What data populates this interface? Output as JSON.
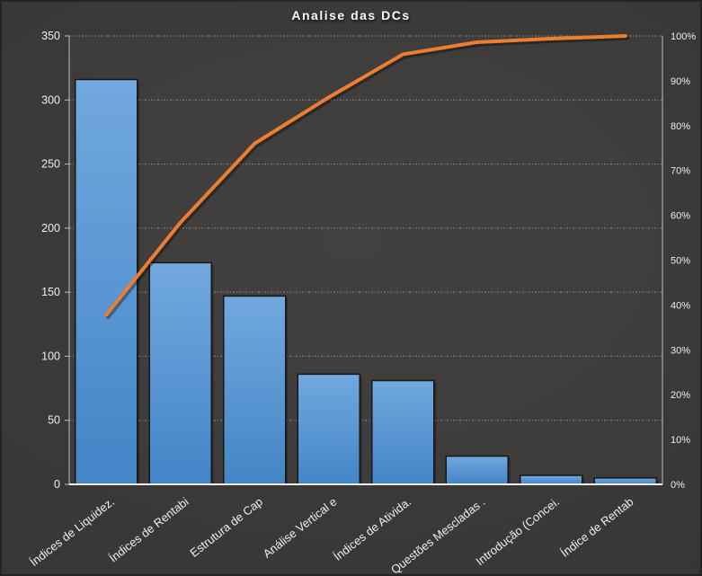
{
  "chart_data": {
    "type": "bar",
    "subtype": "pareto-with-cumulative-line",
    "title": "Analise das DCs",
    "categories": [
      "Índices de Liquidez.",
      "Índices de Rentabi",
      "Estrutura de Cap",
      "Análise Vertical e",
      "Índices de Ativida.",
      "Questões Mescladas .",
      "Introdução (Concei.",
      "Índice de Rentab"
    ],
    "series": [
      {
        "type": "bar",
        "axis": "left",
        "values": [
          316,
          173,
          147,
          86,
          81,
          22,
          7,
          5
        ]
      },
      {
        "type": "line",
        "axis": "right",
        "values_pct": [
          37.8,
          58.4,
          76.0,
          86.3,
          95.9,
          98.6,
          99.4,
          100.0
        ]
      }
    ],
    "left_axis": {
      "min": 0,
      "max": 350,
      "step": 50,
      "tick_labels": [
        "0",
        "50",
        "100",
        "150",
        "200",
        "250",
        "300",
        "350"
      ]
    },
    "right_axis": {
      "min": 0,
      "max": 100,
      "step": 10,
      "tick_labels": [
        "0%",
        "10%",
        "20%",
        "30%",
        "40%",
        "50%",
        "60%",
        "70%",
        "80%",
        "90%",
        "100%"
      ]
    },
    "grid": "horizontal-dashed",
    "legend": "none"
  },
  "colors": {
    "background": "#3a3836",
    "bar_fill_top": "#72a8de",
    "bar_fill_bottom": "#4385c7",
    "bar_border": "#171717",
    "line": "#ed7d31",
    "gridline": "#cecece",
    "axis_line": "#bdbdbd",
    "baseline": "#efefef",
    "text": "#f0efed"
  }
}
